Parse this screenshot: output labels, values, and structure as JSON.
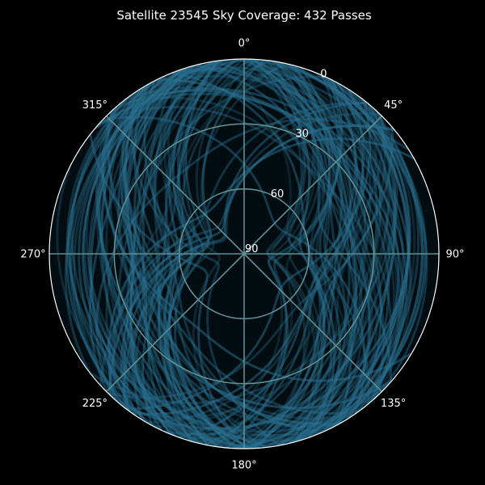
{
  "chart_data": {
    "type": "polar",
    "title": "Satellite 23545 Sky Coverage: 432 Passes",
    "pass_count": 432,
    "azimuth_ticks": [
      "0°",
      "45°",
      "90°",
      "135°",
      "180°",
      "225°",
      "270°",
      "315°"
    ],
    "azimuth_values": [
      0,
      45,
      90,
      135,
      180,
      225,
      270,
      315
    ],
    "elevation_ticks": [
      "0",
      "30",
      "60",
      "90"
    ],
    "elevation_values": [
      0,
      30,
      60,
      90
    ],
    "r_axis": "elevation, 90 at center, 0 at edge",
    "theta_direction": "clockwise",
    "theta_zero": "north (top)",
    "grid": true,
    "colors": {
      "background": "#000000",
      "track": "#2a6f8f",
      "grid": "#5f8f93",
      "text": "#ffffff"
    }
  }
}
